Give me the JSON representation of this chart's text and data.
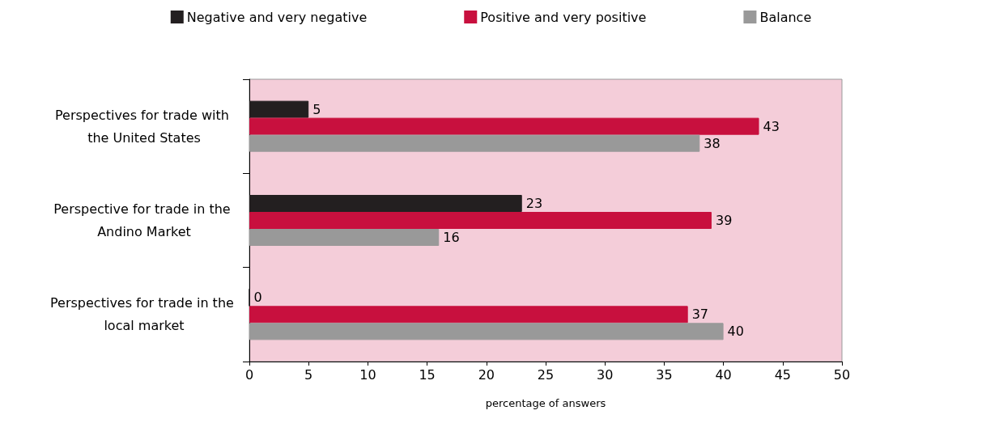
{
  "chart_data": {
    "type": "bar",
    "orientation": "horizontal",
    "categories": [
      "Perspectives for trade with the United States",
      "Perspective for trade in the Andino Market",
      "Perspectives for trade in the local market"
    ],
    "series": [
      {
        "name": "Negative and very negative",
        "color": "#231f20",
        "values": [
          5,
          23,
          0
        ]
      },
      {
        "name": "Positive and very positive",
        "color": "#c8103e",
        "values": [
          43,
          39,
          37
        ]
      },
      {
        "name": "Balance",
        "color": "#999999",
        "values": [
          38,
          16,
          40
        ]
      }
    ],
    "xlabel": "percentage of answers",
    "xlim": [
      0,
      50
    ],
    "xticks": [
      0,
      5,
      10,
      15,
      20,
      25,
      30,
      35,
      40,
      45,
      50
    ],
    "grid": false,
    "legend": "top",
    "data_labels": true
  }
}
